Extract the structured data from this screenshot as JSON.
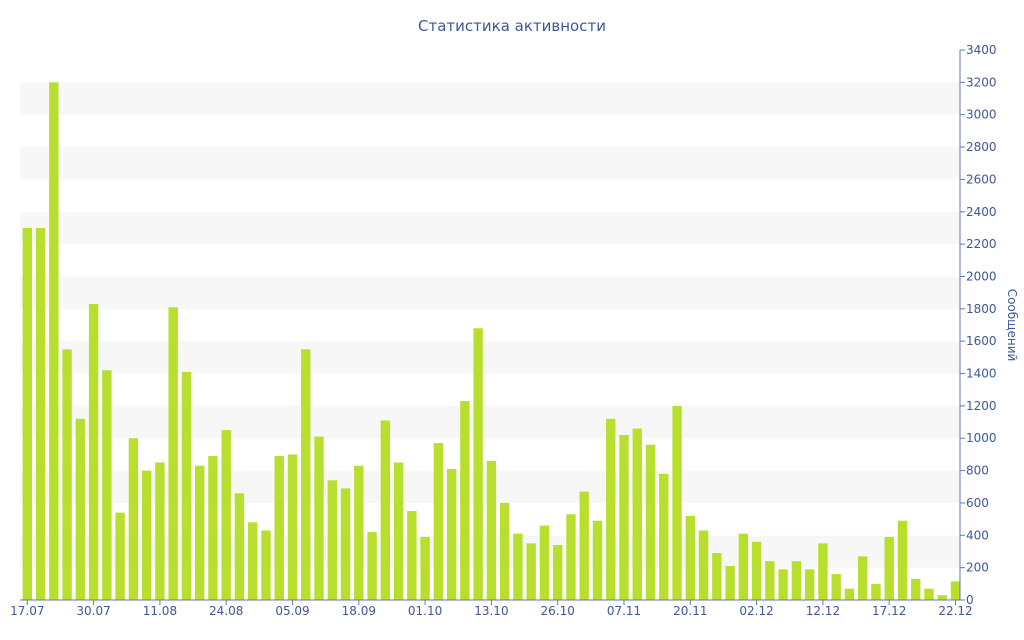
{
  "chart_data": {
    "type": "bar",
    "title": "Статистика активности",
    "ylabel": "Сообщений",
    "xlabel": "",
    "ylim": [
      0,
      3400
    ],
    "y_ticks": [
      0,
      200,
      400,
      600,
      800,
      1000,
      1200,
      1400,
      1600,
      1800,
      2000,
      2200,
      2400,
      2600,
      2800,
      3000,
      3200,
      3400
    ],
    "y_axis_side": "right",
    "grid": "alternating horizontal bands",
    "x_tick_labels": [
      {
        "label": "17.07",
        "index": 0
      },
      {
        "label": "30.07",
        "index": 5
      },
      {
        "label": "11.08",
        "index": 10
      },
      {
        "label": "24.08",
        "index": 15
      },
      {
        "label": "05.09",
        "index": 20
      },
      {
        "label": "18.09",
        "index": 25
      },
      {
        "label": "01.10",
        "index": 30
      },
      {
        "label": "13.10",
        "index": 35
      },
      {
        "label": "26.10",
        "index": 40
      },
      {
        "label": "07.11",
        "index": 45
      },
      {
        "label": "20.11",
        "index": 50
      },
      {
        "label": "02.12",
        "index": 55
      },
      {
        "label": "12.12",
        "index": 60
      },
      {
        "label": "17.12",
        "index": 65
      },
      {
        "label": "22.12",
        "index": 70
      }
    ],
    "bar_color": "#b9df2e",
    "band_color": "#f7f7f7",
    "text_color": "#3e5796",
    "axis_color": "#6577aa",
    "values": [
      2300,
      2300,
      3200,
      1550,
      1120,
      1830,
      1420,
      540,
      1000,
      800,
      850,
      1810,
      1410,
      830,
      890,
      1050,
      660,
      480,
      430,
      890,
      900,
      1550,
      1010,
      740,
      690,
      830,
      420,
      1110,
      850,
      550,
      390,
      970,
      810,
      1230,
      1680,
      860,
      600,
      410,
      350,
      460,
      340,
      530,
      670,
      490,
      1120,
      1020,
      1060,
      960,
      780,
      1200,
      520,
      430,
      290,
      210,
      410,
      360,
      240,
      190,
      240,
      190,
      350,
      160,
      70,
      270,
      100,
      390,
      490,
      130,
      70,
      30,
      115
    ]
  }
}
